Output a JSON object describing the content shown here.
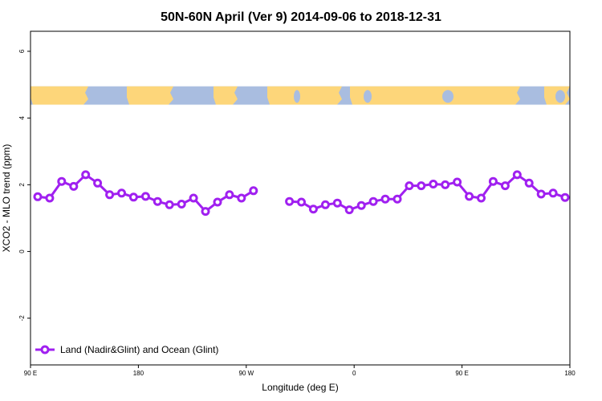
{
  "chart_data": {
    "type": "line",
    "title": "50N-60N April (Ver 9)   2014-09-06 to 2018-12-31",
    "xlabel": "Longitude (deg E)",
    "ylabel": "XCO2 - MLO trend (ppm)",
    "x_axis": {
      "range_labels": [
        "90 E",
        "180 E"
      ],
      "ticks": [
        {
          "label": "90 E",
          "index": 0
        },
        {
          "label": "180",
          "index": 9
        },
        {
          "label": "90 W",
          "index": 18
        },
        {
          "label": "0",
          "index": 27
        },
        {
          "label": "90 E",
          "index": 36
        },
        {
          "label": "180",
          "index": 45
        }
      ],
      "min_index": 0,
      "max_index": 45
    },
    "ylim": [
      -3.4,
      6.6
    ],
    "y_ticks": [
      -2,
      0,
      2,
      4,
      6
    ],
    "series": [
      {
        "name": "Land (Nadir&Glint) and Ocean (Glint)",
        "color": "#a020f0",
        "points": [
          [
            0.6,
            1.64
          ],
          [
            1.6,
            1.6
          ],
          [
            2.6,
            2.1
          ],
          [
            3.6,
            1.95
          ],
          [
            4.6,
            2.3
          ],
          [
            5.6,
            2.05
          ],
          [
            6.6,
            1.7
          ],
          [
            7.6,
            1.75
          ],
          [
            8.6,
            1.63
          ],
          [
            9.6,
            1.65
          ],
          [
            10.6,
            1.5
          ],
          [
            11.6,
            1.4
          ],
          [
            12.6,
            1.42
          ],
          [
            13.6,
            1.6
          ],
          [
            14.6,
            1.2
          ],
          [
            15.6,
            1.48
          ],
          [
            16.6,
            1.7
          ],
          [
            17.6,
            1.6
          ],
          [
            18.6,
            1.82
          ],
          null,
          [
            21.6,
            1.5
          ],
          [
            22.6,
            1.48
          ],
          [
            23.6,
            1.27
          ],
          [
            24.6,
            1.4
          ],
          [
            25.6,
            1.45
          ],
          [
            26.6,
            1.25
          ],
          [
            27.6,
            1.38
          ],
          [
            28.6,
            1.5
          ],
          [
            29.6,
            1.57
          ],
          [
            30.6,
            1.57
          ],
          [
            31.6,
            1.97
          ],
          [
            32.6,
            1.97
          ],
          [
            33.6,
            2.02
          ],
          [
            34.6,
            2.0
          ],
          [
            35.6,
            2.08
          ],
          [
            36.6,
            1.65
          ],
          [
            37.6,
            1.6
          ],
          [
            38.6,
            2.1
          ],
          [
            39.6,
            1.97
          ],
          [
            40.6,
            2.3
          ],
          [
            41.6,
            2.05
          ],
          [
            42.6,
            1.72
          ],
          [
            43.6,
            1.75
          ],
          [
            44.6,
            1.62
          ]
        ]
      }
    ],
    "map_strip": {
      "ymin": 4.4,
      "ymax": 4.95,
      "ocean_color": "#a9bde0",
      "land_color": "#fdd67a"
    },
    "legend_position": "bottom-left",
    "grid": false
  }
}
